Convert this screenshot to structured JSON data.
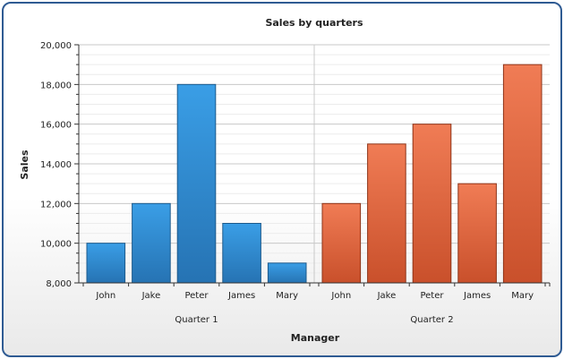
{
  "chart_data": {
    "type": "bar",
    "title": "Sales by quarters",
    "xlabel": "Manager",
    "ylabel": "Sales",
    "ylim": [
      8000,
      20000
    ],
    "yticks": [
      "8,000",
      "10,000",
      "12,000",
      "14,000",
      "16,000",
      "18,000",
      "20,000"
    ],
    "grid": true,
    "groups": [
      {
        "name": "Quarter 1",
        "color": "#2e86cf",
        "categories": [
          "John",
          "Jake",
          "Peter",
          "James",
          "Mary"
        ],
        "values": [
          10000,
          12000,
          18000,
          11000,
          9000
        ]
      },
      {
        "name": "Quarter 2",
        "color": "#e2663f",
        "categories": [
          "John",
          "Jake",
          "Peter",
          "James",
          "Mary"
        ],
        "values": [
          12000,
          15000,
          16000,
          13000,
          19000
        ]
      }
    ]
  }
}
